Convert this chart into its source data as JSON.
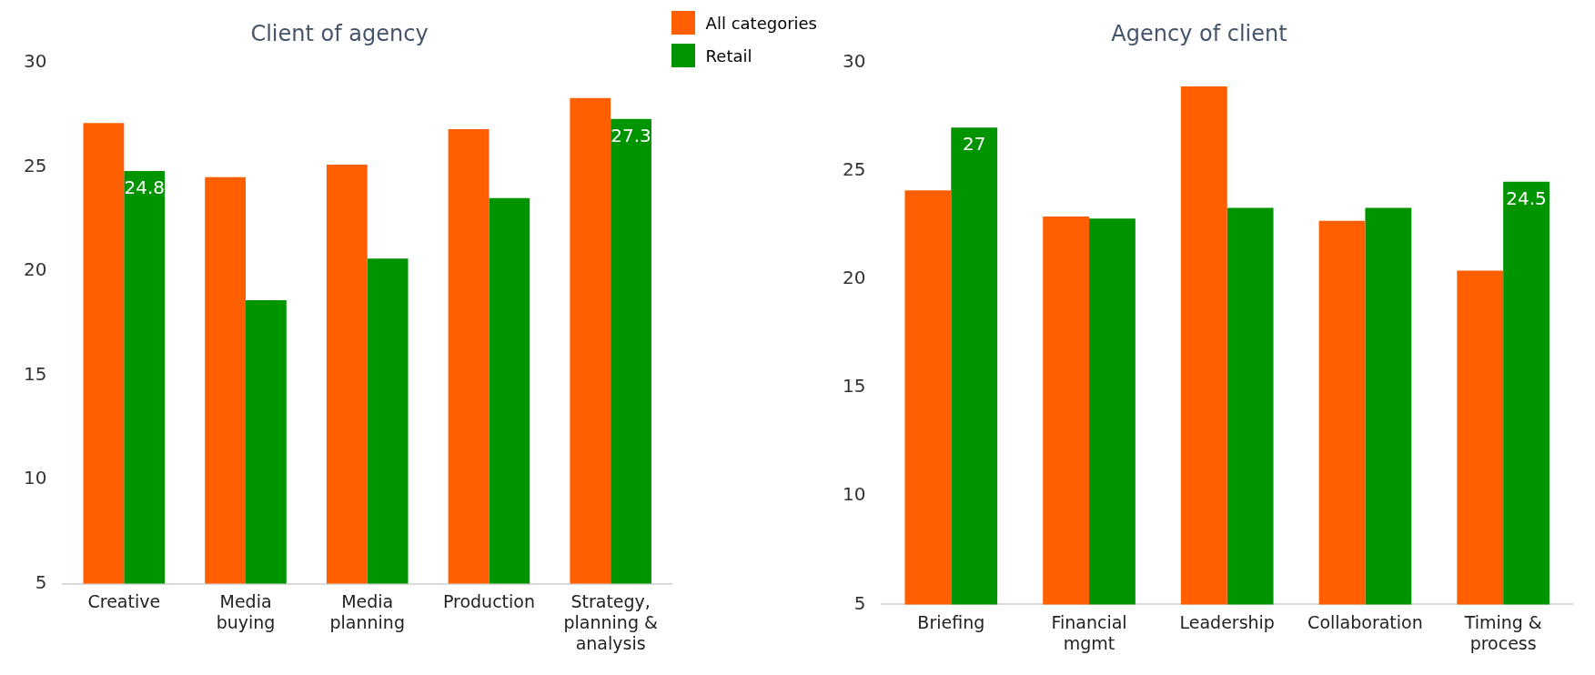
{
  "chart_data": [
    {
      "type": "bar",
      "title": "Client of agency",
      "categories": [
        "Creative",
        "Media buying",
        "Media planning",
        "Production",
        "Strategy, planning & analysis"
      ],
      "ylim": [
        5,
        30
      ],
      "yticks": [
        5,
        10,
        15,
        20,
        25,
        30
      ],
      "grid": false,
      "legend": "top right",
      "series": [
        {
          "name": "All categories",
          "color": "#ff5f00",
          "values": [
            27.1,
            24.5,
            25.1,
            26.8,
            28.3
          ]
        },
        {
          "name": "Retail",
          "color": "#009400",
          "values": [
            24.8,
            18.6,
            20.6,
            23.5,
            27.3
          ],
          "value_labels": [
            "24.8",
            null,
            null,
            null,
            "27.3"
          ]
        }
      ]
    },
    {
      "type": "bar",
      "title": "Agency of client",
      "categories": [
        "Briefing",
        "Financial mgmt",
        "Leadership",
        "Collaboration",
        "Timing & process"
      ],
      "ylim": [
        5,
        30
      ],
      "yticks": [
        5,
        10,
        15,
        20,
        25,
        30
      ],
      "grid": false,
      "series": [
        {
          "color": "#ff5f00",
          "values": [
            24.1,
            22.9,
            28.9,
            22.7,
            20.4
          ]
        },
        {
          "color": "#009400",
          "values": [
            27.0,
            22.8,
            23.3,
            23.3,
            24.5
          ],
          "value_labels": [
            "27",
            null,
            null,
            null,
            "24.5"
          ]
        }
      ]
    }
  ]
}
